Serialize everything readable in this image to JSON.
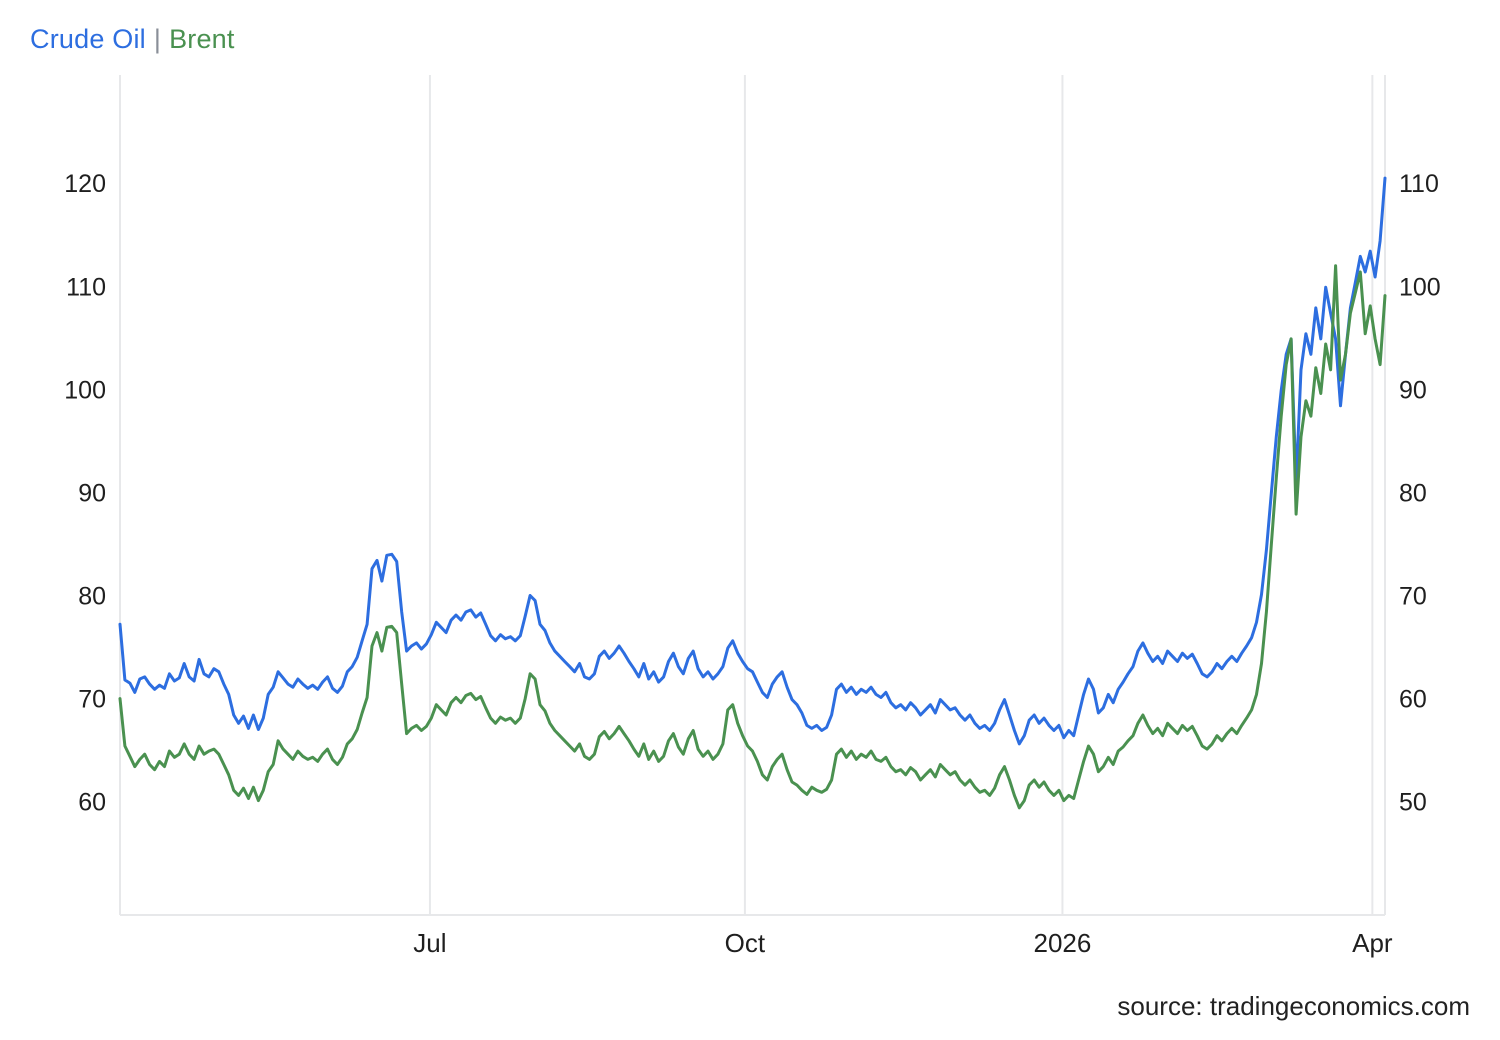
{
  "header": {
    "series1_label": "Crude Oil",
    "separator": "|",
    "series2_label": "Brent"
  },
  "footer": {
    "source": "source: tradingeconomics.com"
  },
  "colors": {
    "crude_oil": "#2d6ee0",
    "brent": "#4a9150",
    "grid": "#e7e8ea",
    "axis_text": "#1f1f1f",
    "separator": "#8a8f98"
  },
  "chart_data": {
    "type": "line",
    "title": "Crude Oil | Brent",
    "grid": "vertical-only",
    "legend_position": "top-left-title",
    "x_axis": {
      "ticks": [
        {
          "label": "Jul",
          "f": 0.245
        },
        {
          "label": "Oct",
          "f": 0.494
        },
        {
          "label": "2026",
          "f": 0.745
        },
        {
          "label": "Apr",
          "f": 0.99
        }
      ]
    },
    "left_axis": {
      "ticks": [
        120,
        110,
        100,
        90,
        80,
        70,
        60
      ],
      "range": [
        49.0,
        130.5
      ]
    },
    "right_axis": {
      "ticks": [
        110,
        100,
        90,
        80,
        70,
        60,
        50
      ],
      "range": [
        39.0,
        120.5
      ]
    },
    "series": [
      {
        "name": "Crude Oil",
        "axis": "left",
        "color": "#2d6ee0",
        "values": [
          77.2,
          71.8,
          71.5,
          70.6,
          71.9,
          72.1,
          71.4,
          70.9,
          71.3,
          71.0,
          72.4,
          71.7,
          72.0,
          73.4,
          72.1,
          71.7,
          73.8,
          72.4,
          72.1,
          72.9,
          72.6,
          71.4,
          70.4,
          68.4,
          67.6,
          68.3,
          67.1,
          68.4,
          67.0,
          68.1,
          70.4,
          71.1,
          72.6,
          72.0,
          71.4,
          71.1,
          71.9,
          71.4,
          71.0,
          71.3,
          70.9,
          71.6,
          72.1,
          71.0,
          70.6,
          71.2,
          72.6,
          73.1,
          74.0,
          75.6,
          77.2,
          82.6,
          83.4,
          81.4,
          83.9,
          84.0,
          83.3,
          78.4,
          74.6,
          75.1,
          75.4,
          74.8,
          75.3,
          76.2,
          77.4,
          76.9,
          76.4,
          77.6,
          78.1,
          77.6,
          78.4,
          78.6,
          77.9,
          78.3,
          77.2,
          76.1,
          75.6,
          76.2,
          75.8,
          76.0,
          75.6,
          76.1,
          78.0,
          80.0,
          79.5,
          77.2,
          76.6,
          75.4,
          74.6,
          74.1,
          73.6,
          73.1,
          72.6,
          73.4,
          72.1,
          71.9,
          72.4,
          74.1,
          74.6,
          73.9,
          74.4,
          75.1,
          74.4,
          73.6,
          72.9,
          72.1,
          73.4,
          71.9,
          72.6,
          71.6,
          72.1,
          73.6,
          74.4,
          73.1,
          72.4,
          73.9,
          74.6,
          72.9,
          72.1,
          72.6,
          71.9,
          72.4,
          73.1,
          74.9,
          75.6,
          74.4,
          73.6,
          72.9,
          72.6,
          71.6,
          70.6,
          70.1,
          71.4,
          72.1,
          72.6,
          71.1,
          69.9,
          69.4,
          68.6,
          67.4,
          67.1,
          67.4,
          66.9,
          67.2,
          68.4,
          70.9,
          71.4,
          70.6,
          71.1,
          70.4,
          70.9,
          70.6,
          71.1,
          70.4,
          70.1,
          70.6,
          69.6,
          69.1,
          69.4,
          68.9,
          69.6,
          69.1,
          68.4,
          68.9,
          69.4,
          68.6,
          69.9,
          69.4,
          68.9,
          69.1,
          68.4,
          67.9,
          68.4,
          67.6,
          67.1,
          67.4,
          66.9,
          67.6,
          68.9,
          69.9,
          68.4,
          66.9,
          65.6,
          66.4,
          67.9,
          68.4,
          67.6,
          68.1,
          67.4,
          66.9,
          67.4,
          66.2,
          66.9,
          66.4,
          68.4,
          70.4,
          71.9,
          70.9,
          68.6,
          69.1,
          70.4,
          69.6,
          70.9,
          71.6,
          72.4,
          73.1,
          74.6,
          75.4,
          74.4,
          73.6,
          74.1,
          73.4,
          74.6,
          74.1,
          73.6,
          74.4,
          73.9,
          74.3,
          73.4,
          72.4,
          72.1,
          72.6,
          73.4,
          72.9,
          73.6,
          74.1,
          73.6,
          74.4,
          75.1,
          75.9,
          77.4,
          80.1,
          84.4,
          89.9,
          95.4,
          99.9,
          103.4,
          104.9,
          90.9,
          101.9,
          105.4,
          103.4,
          107.9,
          104.9,
          109.9,
          107.4,
          104.9,
          98.4,
          103.4,
          107.9,
          110.4,
          112.9,
          111.4,
          113.4,
          110.9,
          114.4,
          120.5
        ]
      },
      {
        "name": "Brent",
        "axis": "right",
        "color": "#4a9150",
        "values": [
          60.0,
          55.4,
          54.4,
          53.4,
          54.1,
          54.6,
          53.6,
          53.1,
          53.9,
          53.4,
          54.9,
          54.3,
          54.6,
          55.6,
          54.6,
          54.1,
          55.4,
          54.6,
          54.9,
          55.1,
          54.6,
          53.6,
          52.6,
          51.1,
          50.6,
          51.3,
          50.3,
          51.4,
          50.1,
          51.1,
          52.9,
          53.6,
          55.9,
          55.1,
          54.6,
          54.1,
          54.9,
          54.4,
          54.1,
          54.3,
          53.9,
          54.6,
          55.1,
          54.1,
          53.6,
          54.3,
          55.6,
          56.1,
          57.0,
          58.6,
          60.1,
          65.1,
          66.4,
          64.6,
          66.9,
          67.0,
          66.4,
          61.4,
          56.6,
          57.1,
          57.4,
          56.9,
          57.3,
          58.1,
          59.4,
          58.9,
          58.4,
          59.6,
          60.1,
          59.6,
          60.3,
          60.5,
          59.9,
          60.2,
          59.1,
          58.1,
          57.6,
          58.2,
          57.9,
          58.1,
          57.6,
          58.1,
          60.0,
          62.4,
          61.9,
          59.4,
          58.8,
          57.6,
          56.9,
          56.4,
          55.9,
          55.4,
          54.9,
          55.6,
          54.4,
          54.1,
          54.6,
          56.3,
          56.8,
          56.1,
          56.6,
          57.3,
          56.6,
          55.9,
          55.1,
          54.4,
          55.6,
          54.1,
          54.9,
          53.9,
          54.4,
          55.9,
          56.6,
          55.3,
          54.6,
          56.1,
          56.9,
          55.1,
          54.4,
          54.9,
          54.1,
          54.6,
          55.6,
          58.9,
          59.4,
          57.6,
          56.4,
          55.4,
          54.9,
          53.9,
          52.6,
          52.1,
          53.4,
          54.1,
          54.6,
          53.1,
          51.9,
          51.6,
          51.1,
          50.7,
          51.4,
          51.1,
          50.9,
          51.2,
          52.1,
          54.6,
          55.1,
          54.3,
          54.9,
          54.1,
          54.6,
          54.3,
          54.9,
          54.1,
          53.9,
          54.3,
          53.4,
          52.9,
          53.1,
          52.6,
          53.3,
          52.9,
          52.1,
          52.6,
          53.1,
          52.4,
          53.6,
          53.1,
          52.6,
          52.9,
          52.1,
          51.6,
          52.1,
          51.4,
          50.9,
          51.1,
          50.6,
          51.3,
          52.6,
          53.4,
          52.1,
          50.6,
          49.4,
          50.1,
          51.6,
          52.1,
          51.4,
          51.9,
          51.1,
          50.6,
          51.1,
          50.1,
          50.6,
          50.3,
          52.1,
          53.9,
          55.4,
          54.6,
          52.9,
          53.4,
          54.3,
          53.6,
          54.9,
          55.3,
          55.9,
          56.4,
          57.6,
          58.4,
          57.4,
          56.6,
          57.1,
          56.4,
          57.6,
          57.1,
          56.6,
          57.4,
          56.9,
          57.3,
          56.4,
          55.4,
          55.1,
          55.6,
          56.4,
          55.9,
          56.6,
          57.1,
          56.6,
          57.4,
          58.1,
          58.9,
          60.4,
          63.4,
          68.4,
          74.9,
          81.4,
          87.4,
          92.4,
          94.9,
          77.9,
          85.4,
          88.9,
          87.4,
          92.1,
          89.6,
          94.4,
          91.9,
          102.0,
          90.9,
          93.4,
          97.4,
          99.4,
          101.4,
          95.4,
          98.1,
          94.9,
          92.4,
          99.1
        ]
      }
    ]
  }
}
